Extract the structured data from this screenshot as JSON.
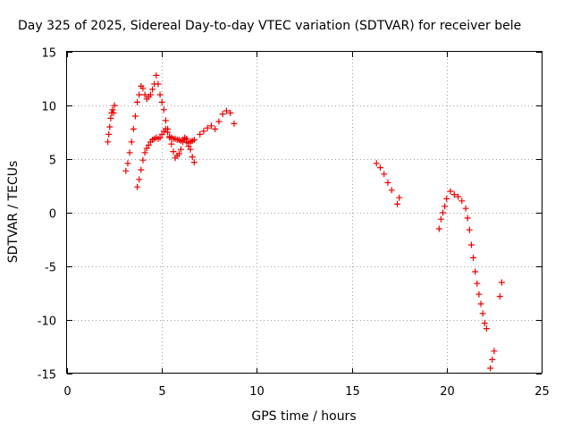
{
  "chart_data": {
    "type": "scatter",
    "title": "Day 325 of 2025, Sidereal Day-to-day VTEC variation (SDTVAR) for receiver bele",
    "xlabel": "GPS time / hours",
    "ylabel": "SDTVAR / TECUs",
    "xlim": [
      0,
      25
    ],
    "ylim": [
      -15,
      15
    ],
    "x_ticks": [
      0,
      5,
      10,
      15,
      20,
      25
    ],
    "y_ticks": [
      -15,
      -10,
      -5,
      0,
      5,
      10,
      15
    ],
    "x_tick_labels": [
      "0",
      "5",
      "10",
      "15",
      "20",
      "25"
    ],
    "y_tick_labels": [
      "-15",
      "-10",
      "-5",
      "0",
      "5",
      "10",
      "15"
    ],
    "grid": true,
    "marker": "plus",
    "color": "#ee0000",
    "series": [
      {
        "name": "SDTVAR",
        "x": [
          2.15,
          2.2,
          2.25,
          2.3,
          2.35,
          2.4,
          2.45,
          2.5,
          3.1,
          3.2,
          3.3,
          3.4,
          3.5,
          3.6,
          3.7,
          3.8,
          3.9,
          4.0,
          4.1,
          4.2,
          4.3,
          4.4,
          4.5,
          4.6,
          4.7,
          4.8,
          4.9,
          5.0,
          5.1,
          5.2,
          5.3,
          5.4,
          5.5,
          5.6,
          5.7,
          5.8,
          5.9,
          6.0,
          6.1,
          6.2,
          6.3,
          6.4,
          6.5,
          6.6,
          6.7,
          3.7,
          3.8,
          3.9,
          4.0,
          4.1,
          4.2,
          4.3,
          4.4,
          4.5,
          4.6,
          4.7,
          4.8,
          4.9,
          5.0,
          5.1,
          5.2,
          5.3,
          5.4,
          5.5,
          5.6,
          5.7,
          5.8,
          5.9,
          6.0,
          6.1,
          6.2,
          6.3,
          6.4,
          6.5,
          6.6,
          6.7,
          7.0,
          7.2,
          7.4,
          7.6,
          7.8,
          8.0,
          8.2,
          8.4,
          8.6,
          8.8,
          16.3,
          16.5,
          16.7,
          16.9,
          17.1,
          17.4,
          17.5,
          19.6,
          19.7,
          19.8,
          19.9,
          20.0,
          20.2,
          20.4,
          20.6,
          20.8,
          21.0,
          21.1,
          21.2,
          21.3,
          21.4,
          21.5,
          21.6,
          21.7,
          21.8,
          21.9,
          22.0,
          22.1,
          22.3,
          22.4,
          22.5,
          22.8,
          22.9
        ],
        "y": [
          6.6,
          7.3,
          8.0,
          8.8,
          9.3,
          9.6,
          9.3,
          10.0,
          3.9,
          4.6,
          5.6,
          6.6,
          7.8,
          9.0,
          10.3,
          11.0,
          11.8,
          11.6,
          11.0,
          10.6,
          10.8,
          11.0,
          11.5,
          12.0,
          12.8,
          12.0,
          11.0,
          10.3,
          9.6,
          8.6,
          7.8,
          7.0,
          6.4,
          5.7,
          5.1,
          5.3,
          5.5,
          5.9,
          6.6,
          7.0,
          6.6,
          6.2,
          5.9,
          6.7,
          6.8,
          2.4,
          3.1,
          4.0,
          4.9,
          5.6,
          6.0,
          6.3,
          6.6,
          6.8,
          6.9,
          7.0,
          6.9,
          7.0,
          7.3,
          7.6,
          7.8,
          7.5,
          7.1,
          7.0,
          6.9,
          6.9,
          6.8,
          6.8,
          6.7,
          6.8,
          6.8,
          6.9,
          6.5,
          6.6,
          5.2,
          4.7,
          7.3,
          7.6,
          7.9,
          8.1,
          7.8,
          8.5,
          9.2,
          9.5,
          9.3,
          8.3,
          4.6,
          4.2,
          3.6,
          2.8,
          2.1,
          0.8,
          1.4,
          -1.5,
          -0.6,
          0.0,
          0.6,
          1.3,
          2.0,
          1.7,
          1.5,
          1.1,
          0.4,
          -0.5,
          -1.6,
          -3.0,
          -4.2,
          -5.5,
          -6.6,
          -7.6,
          -8.5,
          -9.4,
          -10.3,
          -10.8,
          -14.5,
          -13.7,
          -12.9,
          -7.8,
          -6.5
        ]
      }
    ]
  }
}
